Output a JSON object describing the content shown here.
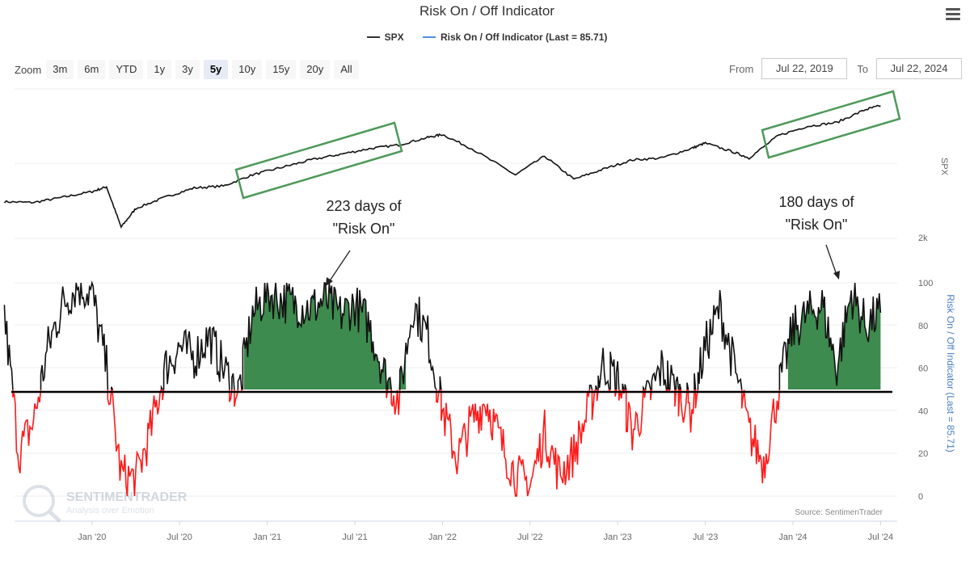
{
  "title": "Risk On / Off Indicator",
  "legend": [
    {
      "label": "SPX",
      "color": "#333333"
    },
    {
      "label": "Risk On / Off Indicator (Last = 85.71)",
      "color": "#4a90d9"
    }
  ],
  "zoom": {
    "label": "Zoom",
    "buttons": [
      "3m",
      "6m",
      "YTD",
      "1y",
      "3y",
      "5y",
      "10y",
      "15y",
      "20y",
      "All"
    ],
    "active": "5y"
  },
  "range": {
    "from_label": "From",
    "from": "Jul 22, 2019",
    "to_label": "To",
    "to": "Jul 22, 2024"
  },
  "axes": {
    "spx_axis_title": "SPX",
    "spx_tick": "2k",
    "ind_axis_title": "Risk On / Off Indicator (Last = 85.71)",
    "ind_ticks": [
      "0",
      "20",
      "40",
      "60",
      "80",
      "100"
    ]
  },
  "annotations": [
    {
      "text_line1": "223 days of",
      "text_line2": "\"Risk On\""
    },
    {
      "text_line1": "180 days of",
      "text_line2": "\"Risk On\""
    }
  ],
  "source": "Source: SentimenTrader",
  "watermark": {
    "name": "SENTIMENTRADER",
    "tagline": "Analysis over Emotion"
  },
  "colors": {
    "spx": "#111111",
    "indicator": "#111111",
    "risk_off": "#ff1a1a",
    "risk_on_fill": "#3d8b4e",
    "box": "#4e9a5a",
    "threshold": "#000000"
  },
  "chart_data": [
    {
      "type": "line",
      "name": "SPX",
      "x": [
        "2019-07",
        "2019-09",
        "2019-11",
        "2020-01",
        "2020-02",
        "2020-03",
        "2020-04",
        "2020-06",
        "2020-08",
        "2020-10",
        "2020-12",
        "2021-02",
        "2021-04",
        "2021-06",
        "2021-08",
        "2021-10",
        "2021-12",
        "2022-01",
        "2022-03",
        "2022-06",
        "2022-08",
        "2022-10",
        "2022-12",
        "2023-02",
        "2023-04",
        "2023-06",
        "2023-07",
        "2023-09",
        "2023-10",
        "2023-12",
        "2024-02",
        "2024-04",
        "2024-06",
        "2024-07"
      ],
      "y": [
        2980,
        2960,
        3100,
        3250,
        3380,
        2300,
        2800,
        3100,
        3350,
        3400,
        3700,
        3900,
        4100,
        4250,
        4400,
        4500,
        4700,
        4780,
        4400,
        3700,
        4200,
        3580,
        3850,
        4100,
        4150,
        4400,
        4550,
        4300,
        4150,
        4750,
        5000,
        5100,
        5450,
        5550
      ],
      "ylim": [
        2000,
        6000
      ],
      "x_ticks": [
        "Jan '20",
        "Jul '20",
        "Jan '21",
        "Jul '21",
        "Jan '22",
        "Jul '22",
        "Jan '23",
        "Jul '23",
        "Jan '24",
        "Jul '24"
      ]
    },
    {
      "type": "line",
      "name": "Risk On / Off Indicator (Last = 85.71)",
      "threshold": 50,
      "ylim": [
        0,
        100
      ],
      "x": [
        "2019-07",
        "2019-08",
        "2019-09",
        "2019-10",
        "2019-11",
        "2019-12",
        "2020-01",
        "2020-02",
        "2020-03",
        "2020-04",
        "2020-05",
        "2020-06",
        "2020-07",
        "2020-08",
        "2020-09",
        "2020-10",
        "2020-11",
        "2020-12",
        "2021-01",
        "2021-02",
        "2021-03",
        "2021-04",
        "2021-05",
        "2021-06",
        "2021-07",
        "2021-08",
        "2021-09",
        "2021-10",
        "2021-11",
        "2021-12",
        "2022-01",
        "2022-02",
        "2022-03",
        "2022-04",
        "2022-05",
        "2022-06",
        "2022-07",
        "2022-08",
        "2022-09",
        "2022-10",
        "2022-11",
        "2022-12",
        "2023-01",
        "2023-02",
        "2023-03",
        "2023-04",
        "2023-05",
        "2023-06",
        "2023-07",
        "2023-08",
        "2023-09",
        "2023-10",
        "2023-11",
        "2023-12",
        "2024-01",
        "2024-02",
        "2024-03",
        "2024-04",
        "2024-05",
        "2024-06",
        "2024-07"
      ],
      "y": [
        85,
        20,
        35,
        70,
        90,
        99,
        95,
        60,
        10,
        8,
        30,
        60,
        70,
        65,
        75,
        60,
        48,
        85,
        95,
        92,
        90,
        88,
        92,
        85,
        90,
        80,
        58,
        45,
        90,
        75,
        40,
        18,
        35,
        45,
        25,
        10,
        5,
        30,
        10,
        20,
        40,
        62,
        55,
        30,
        45,
        60,
        50,
        40,
        70,
        88,
        60,
        30,
        15,
        50,
        78,
        85,
        90,
        60,
        95,
        80,
        86
      ]
    }
  ]
}
